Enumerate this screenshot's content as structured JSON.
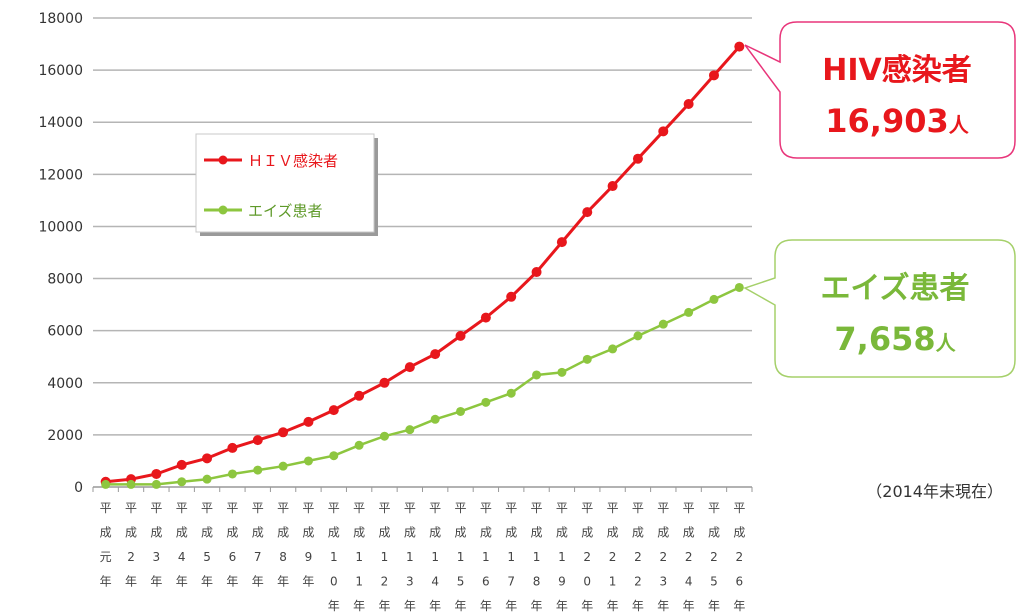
{
  "chart_data": {
    "type": "line",
    "title": "",
    "xlabel": "",
    "ylabel": "",
    "ylim": [
      0,
      18000
    ],
    "yticks": [
      "0",
      "2000",
      "4000",
      "6000",
      "8000",
      "10000",
      "12000",
      "14000",
      "16000",
      "18000"
    ],
    "grid": true,
    "legend_position": "left-middle",
    "categories": [
      "平成元年",
      "平成2年",
      "平成3年",
      "平成4年",
      "平成5年",
      "平成6年",
      "平成7年",
      "平成8年",
      "平成9年",
      "平成10年",
      "平成11年",
      "平成12年",
      "平成13年",
      "平成14年",
      "平成15年",
      "平成16年",
      "平成17年",
      "平成18年",
      "平成19年",
      "平成20年",
      "平成21年",
      "平成22年",
      "平成23年",
      "平成24年",
      "平成25年",
      "平成26年"
    ],
    "category_labels": [
      [
        "平",
        "成",
        "元",
        "年"
      ],
      [
        "平",
        "成",
        "2",
        "年"
      ],
      [
        "平",
        "成",
        "3",
        "年"
      ],
      [
        "平",
        "成",
        "4",
        "年"
      ],
      [
        "平",
        "成",
        "5",
        "年"
      ],
      [
        "平",
        "成",
        "6",
        "年"
      ],
      [
        "平",
        "成",
        "7",
        "年"
      ],
      [
        "平",
        "成",
        "8",
        "年"
      ],
      [
        "平",
        "成",
        "9",
        "年"
      ],
      [
        "平",
        "成",
        "1",
        "0",
        "年"
      ],
      [
        "平",
        "成",
        "1",
        "1",
        "年"
      ],
      [
        "平",
        "成",
        "1",
        "2",
        "年"
      ],
      [
        "平",
        "成",
        "1",
        "3",
        "年"
      ],
      [
        "平",
        "成",
        "1",
        "4",
        "年"
      ],
      [
        "平",
        "成",
        "1",
        "5",
        "年"
      ],
      [
        "平",
        "成",
        "1",
        "6",
        "年"
      ],
      [
        "平",
        "成",
        "1",
        "7",
        "年"
      ],
      [
        "平",
        "成",
        "1",
        "8",
        "年"
      ],
      [
        "平",
        "成",
        "1",
        "9",
        "年"
      ],
      [
        "平",
        "成",
        "2",
        "0",
        "年"
      ],
      [
        "平",
        "成",
        "2",
        "1",
        "年"
      ],
      [
        "平",
        "成",
        "2",
        "2",
        "年"
      ],
      [
        "平",
        "成",
        "2",
        "3",
        "年"
      ],
      [
        "平",
        "成",
        "2",
        "4",
        "年"
      ],
      [
        "平",
        "成",
        "2",
        "5",
        "年"
      ],
      [
        "平",
        "成",
        "2",
        "6",
        "年"
      ]
    ],
    "series": [
      {
        "name": "ＨＩＶ感染者",
        "color": "#e8171c",
        "values": [
          200,
          300,
          500,
          850,
          1100,
          1500,
          1800,
          2100,
          2500,
          2950,
          3500,
          4000,
          4600,
          5100,
          5800,
          6500,
          7300,
          8250,
          9400,
          10550,
          11550,
          12600,
          13650,
          14700,
          15800,
          16903
        ]
      },
      {
        "name": "エイズ患者",
        "color": "#8dc63f",
        "values": [
          100,
          100,
          100,
          200,
          300,
          500,
          650,
          800,
          1000,
          1200,
          1600,
          1950,
          2200,
          2600,
          2900,
          3250,
          3600,
          4300,
          4400,
          4900,
          5300,
          5800,
          6250,
          6700,
          7200,
          7658
        ]
      }
    ],
    "annotations": {
      "hiv": {
        "name": "HIV感染者",
        "number": "16,903",
        "unit": "人",
        "color": "#e8171c"
      },
      "aids": {
        "name": "エイズ患者",
        "number": "7,658",
        "unit": "人",
        "color": "#8dc63f"
      },
      "note": "（2014年末現在）"
    }
  }
}
